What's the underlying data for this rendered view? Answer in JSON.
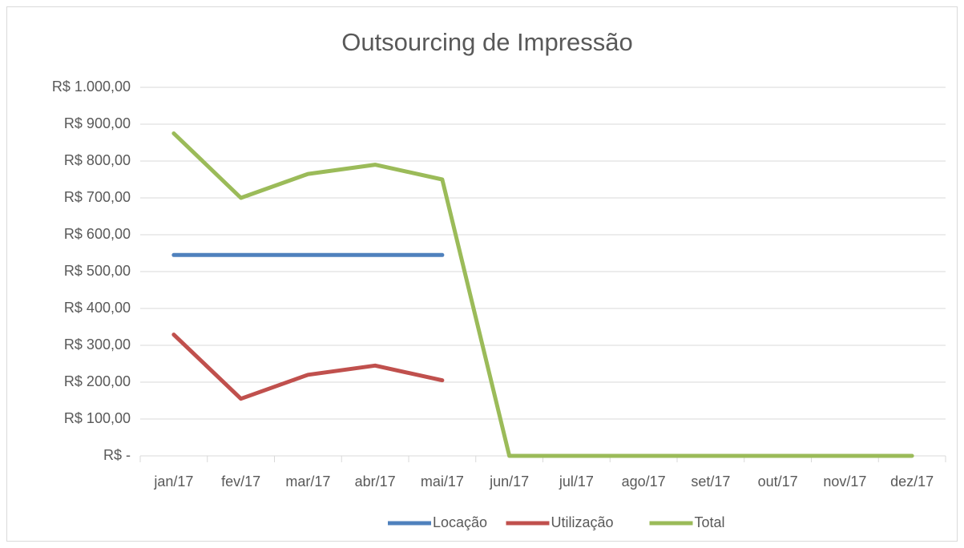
{
  "chart_data": {
    "type": "line",
    "title": "Outsourcing de Impressão",
    "categories": [
      "jan/17",
      "fev/17",
      "mar/17",
      "abr/17",
      "mai/17",
      "jun/17",
      "jul/17",
      "ago/17",
      "set/17",
      "out/17",
      "nov/17",
      "dez/17"
    ],
    "series": [
      {
        "name": "Locação",
        "color": "#4f81bd",
        "values": [
          545,
          545,
          545,
          545,
          545,
          null,
          null,
          null,
          null,
          null,
          null,
          null
        ]
      },
      {
        "name": "Utilização",
        "color": "#c0504d",
        "values": [
          329,
          155,
          220,
          245,
          205,
          null,
          null,
          null,
          null,
          null,
          null,
          null
        ]
      },
      {
        "name": "Total",
        "color": "#9bbb59",
        "values": [
          875,
          700,
          765,
          790,
          750,
          0,
          0,
          0,
          0,
          0,
          0,
          0
        ]
      }
    ],
    "ylim": [
      0,
      1000
    ],
    "yticks": [
      {
        "value": 0,
        "label": "R$ -"
      },
      {
        "value": 100,
        "label": "R$ 100,00"
      },
      {
        "value": 200,
        "label": "R$ 200,00"
      },
      {
        "value": 300,
        "label": "R$ 300,00"
      },
      {
        "value": 400,
        "label": "R$ 400,00"
      },
      {
        "value": 500,
        "label": "R$ 500,00"
      },
      {
        "value": 600,
        "label": "R$ 600,00"
      },
      {
        "value": 700,
        "label": "R$ 700,00"
      },
      {
        "value": 800,
        "label": "R$ 800,00"
      },
      {
        "value": 900,
        "label": "R$ 900,00"
      },
      {
        "value": 1000,
        "label": "R$ 1.000,00"
      }
    ],
    "grid": true,
    "legend": "bottom"
  }
}
